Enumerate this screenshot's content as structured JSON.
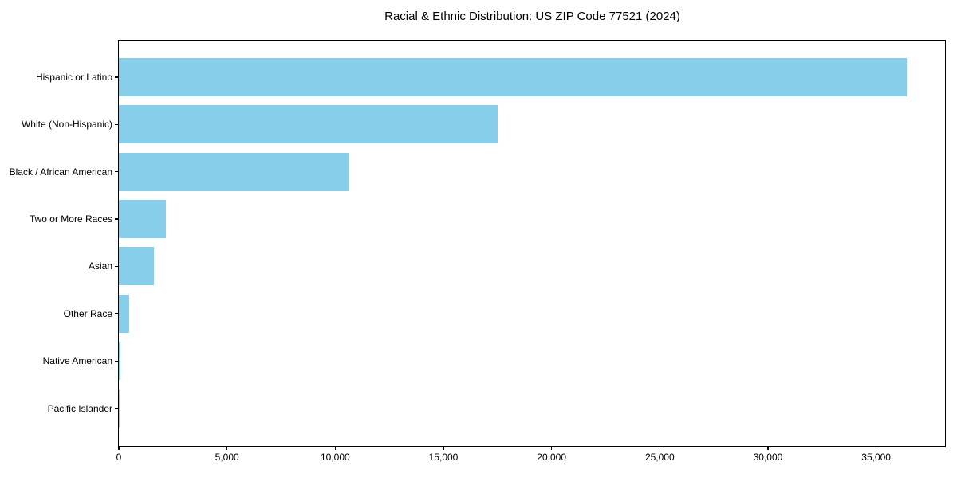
{
  "title": "Racial & Ethnic Distribution: US ZIP Code 77521 (2024)",
  "chart_data": {
    "type": "bar",
    "orientation": "horizontal",
    "title": "Racial & Ethnic Distribution: US ZIP Code 77521 (2024)",
    "categories": [
      "Hispanic or Latino",
      "White (Non-Hispanic)",
      "Black / African American",
      "Two or More Races",
      "Asian",
      "Other Race",
      "Native American",
      "Pacific Islander"
    ],
    "values": [
      36400,
      17500,
      10600,
      2180,
      1620,
      480,
      75,
      20
    ],
    "bar_color": "#87CEEB",
    "xlabel": "",
    "ylabel": "",
    "xlim": [
      0,
      38220
    ],
    "x_ticks": [
      0,
      5000,
      10000,
      15000,
      20000,
      25000,
      30000,
      35000
    ],
    "x_tick_labels": [
      "0",
      "5,000",
      "10,000",
      "15,000",
      "20,000",
      "25,000",
      "30,000",
      "35,000"
    ],
    "grid": false,
    "legend": "none",
    "axis_color": "#000000",
    "background_color": "#ffffff"
  }
}
